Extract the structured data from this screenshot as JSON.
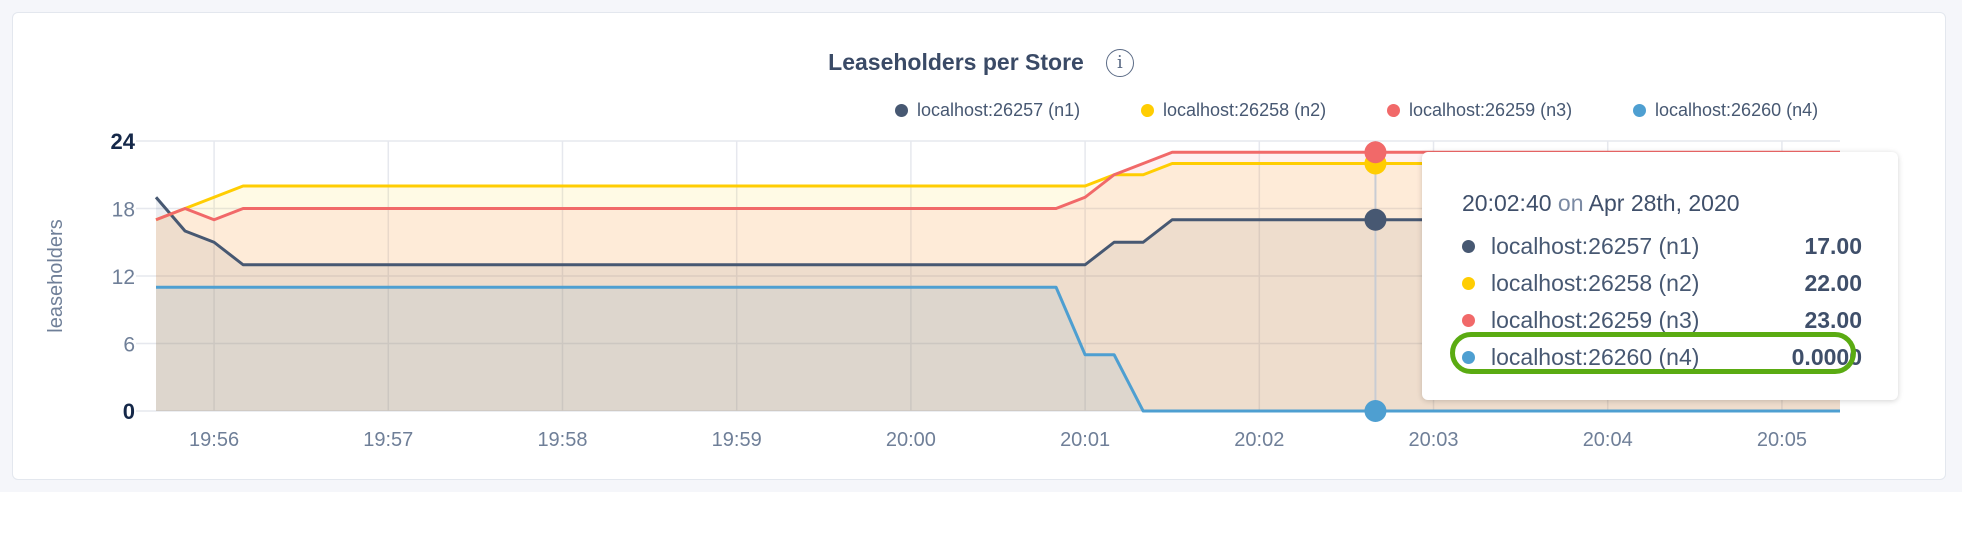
{
  "chart_data": {
    "type": "area",
    "title": "Leaseholders per Store",
    "ylabel": "leaseholders",
    "xlabel": "",
    "ylim": [
      0,
      24
    ],
    "yticks": [
      "0",
      "6",
      "12",
      "18",
      "24"
    ],
    "xticks": [
      "19:56",
      "19:57",
      "19:58",
      "19:59",
      "20:00",
      "20:01",
      "20:02",
      "20:03",
      "20:04",
      "20:05"
    ],
    "xlim": [
      "19:55:40",
      "20:05:20"
    ],
    "grid": true,
    "legend_position": "top-right",
    "series": [
      {
        "name": "localhost:26257 (n1)",
        "color": "#475872",
        "points": [
          [
            "19:55:40",
            19
          ],
          [
            "19:55:50",
            16
          ],
          [
            "19:56:00",
            15
          ],
          [
            "19:56:10",
            13
          ],
          [
            "20:01:00",
            13
          ],
          [
            "20:01:10",
            15
          ],
          [
            "20:01:20",
            15
          ],
          [
            "20:01:30",
            17
          ],
          [
            "20:05:20",
            17
          ]
        ]
      },
      {
        "name": "localhost:26258 (n2)",
        "color": "#ffcd02",
        "points": [
          [
            "19:55:40",
            17
          ],
          [
            "19:55:50",
            18
          ],
          [
            "19:56:00",
            19
          ],
          [
            "19:56:10",
            20
          ],
          [
            "20:01:00",
            20
          ],
          [
            "20:01:10",
            21
          ],
          [
            "20:01:20",
            21
          ],
          [
            "20:01:30",
            22
          ],
          [
            "20:05:20",
            22
          ]
        ]
      },
      {
        "name": "localhost:26259 (n3)",
        "color": "#f16969",
        "points": [
          [
            "19:55:40",
            17
          ],
          [
            "19:55:50",
            18
          ],
          [
            "19:56:00",
            17
          ],
          [
            "19:56:10",
            18
          ],
          [
            "20:00:50",
            18
          ],
          [
            "20:01:00",
            19
          ],
          [
            "20:01:10",
            21
          ],
          [
            "20:01:20",
            22
          ],
          [
            "20:01:30",
            23
          ],
          [
            "20:05:20",
            23
          ]
        ]
      },
      {
        "name": "localhost:26260 (n4)",
        "color": "#4e9fd1",
        "points": [
          [
            "19:55:40",
            11
          ],
          [
            "20:00:50",
            11
          ],
          [
            "20:01:00",
            5
          ],
          [
            "20:01:10",
            5
          ],
          [
            "20:01:20",
            0
          ],
          [
            "20:05:20",
            0
          ]
        ]
      }
    ],
    "hover": {
      "time": "20:02:40",
      "title_time": "20:02:40",
      "title_on": "on",
      "title_date": "Apr 28th, 2020",
      "rows": [
        {
          "name": "localhost:26257 (n1)",
          "value": "17.00",
          "color": "#475872"
        },
        {
          "name": "localhost:26258 (n2)",
          "value": "22.00",
          "color": "#ffcd02"
        },
        {
          "name": "localhost:26259 (n3)",
          "value": "23.00",
          "color": "#f16969"
        },
        {
          "name": "localhost:26260 (n4)",
          "value": "0.0000",
          "color": "#4e9fd1"
        }
      ],
      "highlighted_row": 3,
      "highlight_color": "#5aab12"
    }
  },
  "info_icon": "info-icon",
  "info_glyph": "i"
}
